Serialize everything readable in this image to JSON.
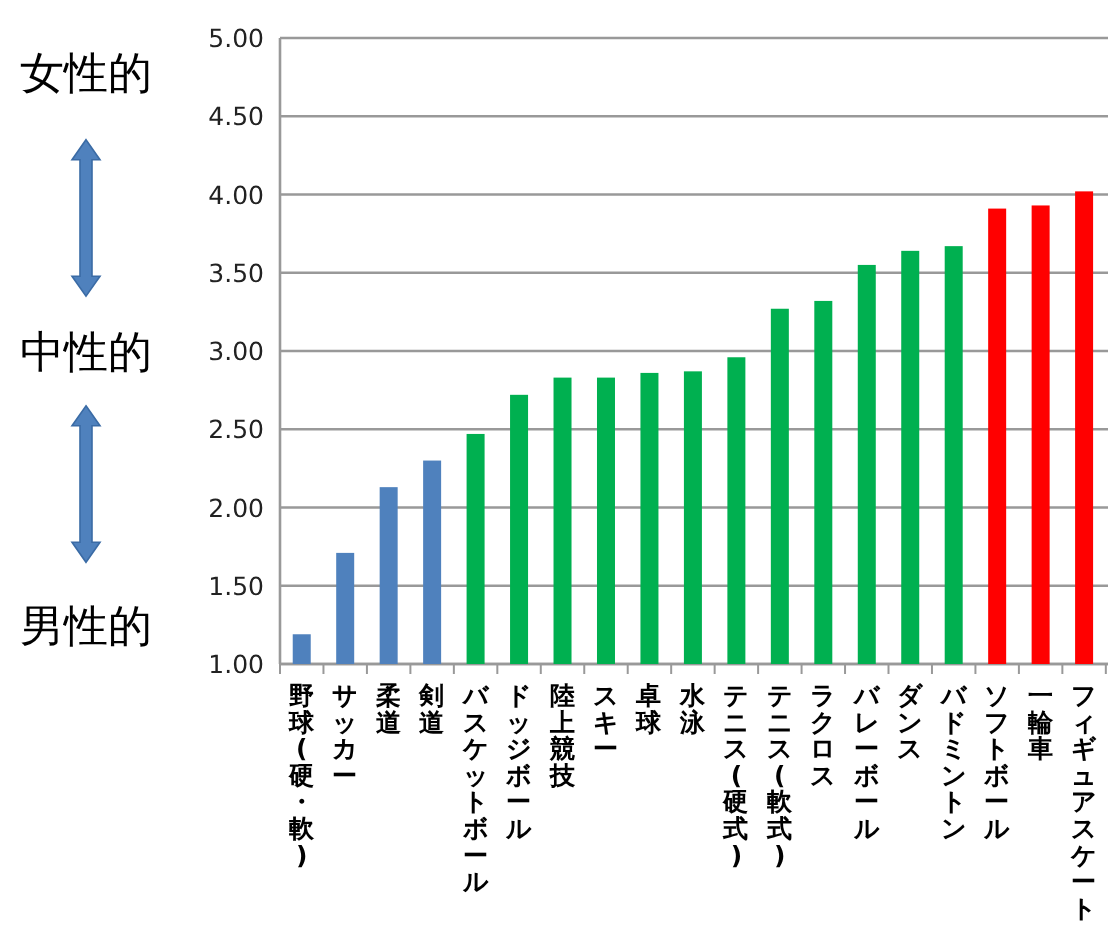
{
  "chart_data": {
    "type": "bar",
    "categories": [
      "野球(硬・軟)",
      "サッカー",
      "柔道",
      "剣道",
      "バスケットボール",
      "ドッジボール",
      "陸上競技",
      "スキー",
      "卓球",
      "水泳",
      "テニス(硬式)",
      "テニス(軟式)",
      "ラクロス",
      "バレーボール",
      "ダンス",
      "バドミントン",
      "ソフトボール",
      "一輪車",
      "フィギュアスケート"
    ],
    "values": [
      1.19,
      1.71,
      2.13,
      2.3,
      2.47,
      2.72,
      2.83,
      2.83,
      2.86,
      2.87,
      2.96,
      3.27,
      3.32,
      3.55,
      3.64,
      3.67,
      3.91,
      3.93,
      4.02
    ],
    "colors": [
      "#4f81bd",
      "#4f81bd",
      "#4f81bd",
      "#4f81bd",
      "#00b050",
      "#00b050",
      "#00b050",
      "#00b050",
      "#00b050",
      "#00b050",
      "#00b050",
      "#00b050",
      "#00b050",
      "#00b050",
      "#00b050",
      "#00b050",
      "#ff0000",
      "#ff0000",
      "#ff0000"
    ],
    "ylim": [
      1,
      5
    ],
    "yticks": [
      {
        "value": 1,
        "label": "1.00"
      },
      {
        "value": 1.5,
        "label": "1.50"
      },
      {
        "value": 2,
        "label": "2.00"
      },
      {
        "value": 2.5,
        "label": "2.50"
      },
      {
        "value": 3,
        "label": "3.00"
      },
      {
        "value": 3.5,
        "label": "3.50"
      },
      {
        "value": 4,
        "label": "4.00"
      },
      {
        "value": 4.5,
        "label": "4.50"
      },
      {
        "value": 5,
        "label": "5.00"
      }
    ],
    "grid": "y",
    "annotations": [
      "女性的",
      "中性的",
      "男性的"
    ]
  }
}
